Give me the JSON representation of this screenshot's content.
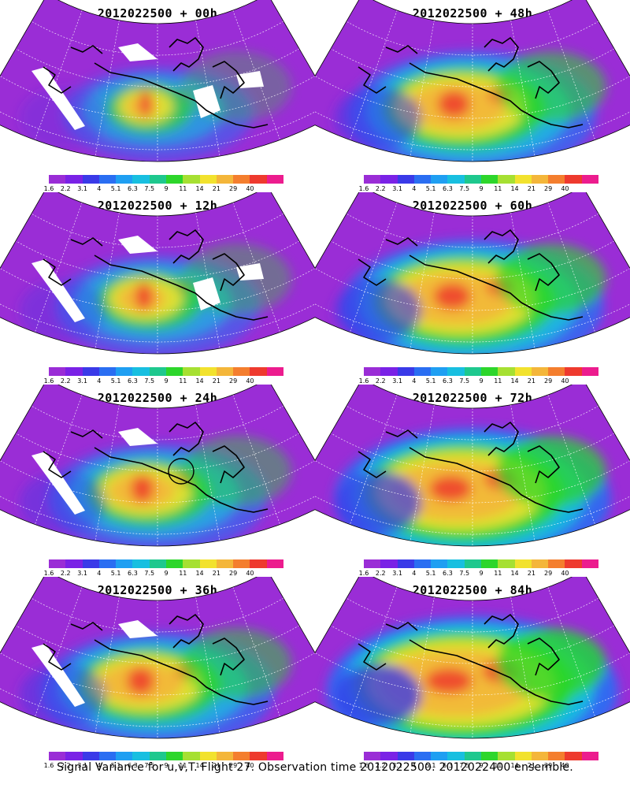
{
  "figure": {
    "caption": "Signal Variance for u,v,T. Flight 27. Observation time 2012022500. 2012022400 ensemble."
  },
  "colorbar": {
    "labels": [
      "1.6",
      "2.2",
      "3.1",
      "4",
      "5.1",
      "6.3",
      "7.5",
      "9",
      "11",
      "14",
      "21",
      "29",
      "40"
    ],
    "colors": [
      "#9a2dd6",
      "#7a22e6",
      "#3a3ae8",
      "#2a6ef2",
      "#1f9ff2",
      "#18bfe0",
      "#1ec88e",
      "#2dd62b",
      "#a6e032",
      "#f2e22e",
      "#f4b63a",
      "#f47e2e",
      "#ee3a2e",
      "#ec1c8e"
    ]
  },
  "panels": [
    {
      "id": "p00",
      "title": "2012022500 + 00h",
      "lead_hours": 0,
      "column": "left",
      "row": 1
    },
    {
      "id": "p12",
      "title": "2012022500 + 12h",
      "lead_hours": 12,
      "column": "left",
      "row": 2
    },
    {
      "id": "p24",
      "title": "2012022500 + 24h",
      "lead_hours": 24,
      "column": "left",
      "row": 3
    },
    {
      "id": "p36",
      "title": "2012022500 + 36h",
      "lead_hours": 36,
      "column": "left",
      "row": 4
    },
    {
      "id": "p48",
      "title": "2012022500 + 48h",
      "lead_hours": 48,
      "column": "right",
      "row": 1
    },
    {
      "id": "p60",
      "title": "2012022500 + 60h",
      "lead_hours": 60,
      "column": "right",
      "row": 2
    },
    {
      "id": "p72",
      "title": "2012022500 + 72h",
      "lead_hours": 72,
      "column": "right",
      "row": 3
    },
    {
      "id": "p84",
      "title": "2012022500 + 84h",
      "lead_hours": 84,
      "column": "right",
      "row": 4
    }
  ]
}
